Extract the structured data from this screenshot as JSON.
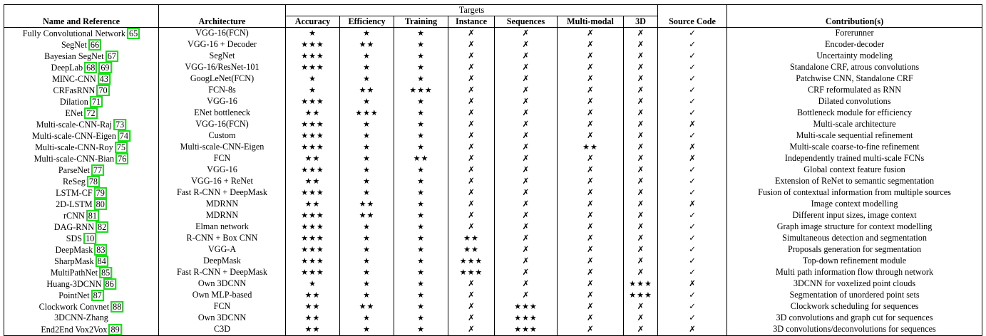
{
  "header": {
    "group_title": "Targets",
    "columns": [
      "Name and Reference",
      "Architecture",
      "Accuracy",
      "Efficiency",
      "Training",
      "Instance",
      "Sequences",
      "Multi-modal",
      "3D",
      "Source Code",
      "Contribution(s)"
    ]
  },
  "rows": [
    {
      "name": "Fully Convolutional Network",
      "ref": "65",
      "arch": "VGG-16(FCN)",
      "acc": "★",
      "eff": "★",
      "train": "★",
      "inst": "✗",
      "seq": "✗",
      "mm": "✗",
      "d3": "✗",
      "src": "✓",
      "contrib": "Forerunner"
    },
    {
      "name": "SegNet",
      "ref": "66",
      "arch": "VGG-16 + Decoder",
      "acc": "★★★",
      "eff": "★★",
      "train": "★",
      "inst": "✗",
      "seq": "✗",
      "mm": "✗",
      "d3": "✗",
      "src": "✓",
      "contrib": "Encoder-decoder"
    },
    {
      "name": "Bayesian SegNet",
      "ref": "67",
      "arch": "SegNet",
      "acc": "★★★",
      "eff": "★",
      "train": "★",
      "inst": "✗",
      "seq": "✗",
      "mm": "✗",
      "d3": "✗",
      "src": "✓",
      "contrib": "Uncertainty modeling"
    },
    {
      "name": "DeepLab",
      "ref": "68",
      "ref2": "69",
      "arch": "VGG-16/ResNet-101",
      "acc": "★★★",
      "eff": "★",
      "train": "★",
      "inst": "✗",
      "seq": "✗",
      "mm": "✗",
      "d3": "✗",
      "src": "✓",
      "contrib": "Standalone CRF, atrous convolutions"
    },
    {
      "name": "MINC-CNN",
      "ref": "43",
      "arch": "GoogLeNet(FCN)",
      "acc": "★",
      "eff": "★",
      "train": "★",
      "inst": "✗",
      "seq": "✗",
      "mm": "✗",
      "d3": "✗",
      "src": "✓",
      "contrib": "Patchwise CNN, Standalone CRF"
    },
    {
      "name": "CRFasRNN",
      "ref": "70",
      "arch": "FCN-8s",
      "acc": "★",
      "eff": "★★",
      "train": "★★★",
      "inst": "✗",
      "seq": "✗",
      "mm": "✗",
      "d3": "✗",
      "src": "✓",
      "contrib": "CRF reformulated as RNN"
    },
    {
      "name": "Dilation",
      "ref": "71",
      "arch": "VGG-16",
      "acc": "★★★",
      "eff": "★",
      "train": "★",
      "inst": "✗",
      "seq": "✗",
      "mm": "✗",
      "d3": "✗",
      "src": "✓",
      "contrib": "Dilated convolutions"
    },
    {
      "name": "ENet",
      "ref": "72",
      "arch": "ENet bottleneck",
      "acc": "★★",
      "eff": "★★★",
      "train": "★",
      "inst": "✗",
      "seq": "✗",
      "mm": "✗",
      "d3": "✗",
      "src": "✓",
      "contrib": "Bottleneck module for efficiency"
    },
    {
      "name": "Multi-scale-CNN-Raj",
      "ref": "73",
      "arch": "VGG-16(FCN)",
      "acc": "★★★",
      "eff": "★",
      "train": "★",
      "inst": "✗",
      "seq": "✗",
      "mm": "✗",
      "d3": "✗",
      "src": "✗",
      "contrib": "Multi-scale architecture"
    },
    {
      "name": "Multi-scale-CNN-Eigen",
      "ref": "74",
      "arch": "Custom",
      "acc": "★★★",
      "eff": "★",
      "train": "★",
      "inst": "✗",
      "seq": "✗",
      "mm": "✗",
      "d3": "✗",
      "src": "✓",
      "contrib": "Multi-scale sequential refinement"
    },
    {
      "name": "Multi-scale-CNN-Roy",
      "ref": "75",
      "arch": "Multi-scale-CNN-Eigen",
      "acc": "★★★",
      "eff": "★",
      "train": "★",
      "inst": "✗",
      "seq": "✗",
      "mm": "★★",
      "d3": "✗",
      "src": "✗",
      "contrib": "Multi-scale coarse-to-fine refinement"
    },
    {
      "name": "Multi-scale-CNN-Bian",
      "ref": "76",
      "arch": "FCN",
      "acc": "★★",
      "eff": "★",
      "train": "★★",
      "inst": "✗",
      "seq": "✗",
      "mm": "✗",
      "d3": "✗",
      "src": "✗",
      "contrib": "Independently trained multi-scale FCNs"
    },
    {
      "name": "ParseNet",
      "ref": "77",
      "arch": "VGG-16",
      "acc": "★★★",
      "eff": "★",
      "train": "★",
      "inst": "✗",
      "seq": "✗",
      "mm": "✗",
      "d3": "✗",
      "src": "✓",
      "contrib": "Global context feature fusion"
    },
    {
      "name": "ReSeg",
      "ref": "78",
      "arch": "VGG-16 + ReNet",
      "acc": "★★",
      "eff": "★",
      "train": "★",
      "inst": "✗",
      "seq": "✗",
      "mm": "✗",
      "d3": "✗",
      "src": "✓",
      "contrib": "Extension of ReNet to semantic segmentation"
    },
    {
      "name": "LSTM-CF",
      "ref": "79",
      "arch": "Fast R-CNN + DeepMask",
      "acc": "★★★",
      "eff": "★",
      "train": "★",
      "inst": "✗",
      "seq": "✗",
      "mm": "✗",
      "d3": "✗",
      "src": "✓",
      "contrib": "Fusion of contextual information from multiple sources"
    },
    {
      "name": "2D-LSTM",
      "ref": "80",
      "arch": "MDRNN",
      "acc": "★★",
      "eff": "★★",
      "train": "★",
      "inst": "✗",
      "seq": "✗",
      "mm": "✗",
      "d3": "✗",
      "src": "✗",
      "contrib": "Image context modelling"
    },
    {
      "name": "rCNN",
      "ref": "81",
      "arch": "MDRNN",
      "acc": "★★★",
      "eff": "★★",
      "train": "★",
      "inst": "✗",
      "seq": "✗",
      "mm": "✗",
      "d3": "✗",
      "src": "✓",
      "contrib": "Different input sizes, image context"
    },
    {
      "name": "DAG-RNN",
      "ref": "82",
      "arch": "Elman network",
      "acc": "★★★",
      "eff": "★",
      "train": "★",
      "inst": "✗",
      "seq": "✗",
      "mm": "✗",
      "d3": "✗",
      "src": "✓",
      "contrib": "Graph image structure for context modelling"
    },
    {
      "name": "SDS",
      "ref": "10",
      "arch": "R-CNN + Box CNN",
      "acc": "★★★",
      "eff": "★",
      "train": "★",
      "inst": "★★",
      "seq": "✗",
      "mm": "✗",
      "d3": "✗",
      "src": "✓",
      "contrib": "Simultaneous detection and segmentation"
    },
    {
      "name": "DeepMask",
      "ref": "83",
      "arch": "VGG-A",
      "acc": "★★★",
      "eff": "★",
      "train": "★",
      "inst": "★★",
      "seq": "✗",
      "mm": "✗",
      "d3": "✗",
      "src": "✓",
      "contrib": "Proposals generation for segmentation"
    },
    {
      "name": "SharpMask",
      "ref": "84",
      "arch": "DeepMask",
      "acc": "★★★",
      "eff": "★",
      "train": "★",
      "inst": "★★★",
      "seq": "✗",
      "mm": "✗",
      "d3": "✗",
      "src": "✓",
      "contrib": "Top-down refinement module"
    },
    {
      "name": "MultiPathNet",
      "ref": "85",
      "arch": "Fast R-CNN + DeepMask",
      "acc": "★★★",
      "eff": "★",
      "train": "★",
      "inst": "★★★",
      "seq": "✗",
      "mm": "✗",
      "d3": "✗",
      "src": "✓",
      "contrib": "Multi path information flow through network"
    },
    {
      "name": "Huang-3DCNN",
      "ref": "86",
      "arch": "Own 3DCNN",
      "acc": "★",
      "eff": "★",
      "train": "★",
      "inst": "✗",
      "seq": "✗",
      "mm": "✗",
      "d3": "★★★",
      "src": "✗",
      "contrib": "3DCNN for voxelized point clouds"
    },
    {
      "name": "PointNet",
      "ref": "87",
      "arch": "Own MLP-based",
      "acc": "★★",
      "eff": "★",
      "train": "★",
      "inst": "✗",
      "seq": "✗",
      "mm": "✗",
      "d3": "★★★",
      "src": "✓",
      "contrib": "Segmentation of unordered point sets"
    },
    {
      "name": "Clockwork Convnet",
      "ref": "88",
      "arch": "FCN",
      "acc": "★★",
      "eff": "★★",
      "train": "★",
      "inst": "✗",
      "seq": "★★★",
      "mm": "✗",
      "d3": "✗",
      "src": "✓",
      "contrib": "Clockwork scheduling for sequences"
    },
    {
      "name": "3DCNN-Zhang",
      "ref": "",
      "arch": "Own 3DCNN",
      "acc": "★★",
      "eff": "★",
      "train": "★",
      "inst": "✗",
      "seq": "★★★",
      "mm": "✗",
      "d3": "✗",
      "src": "✓",
      "contrib": "3D convolutions and graph cut for sequences"
    },
    {
      "name": "End2End Vox2Vox",
      "ref": "89",
      "arch": "C3D",
      "acc": "★★",
      "eff": "★",
      "train": "★",
      "inst": "✗",
      "seq": "★★★",
      "mm": "✗",
      "d3": "✗",
      "src": "✗",
      "contrib": "3D convolutions/deconvolutions for sequences"
    }
  ],
  "colors": {
    "ref_box": "#19e019",
    "text": "#000000",
    "background": "#ffffff"
  }
}
